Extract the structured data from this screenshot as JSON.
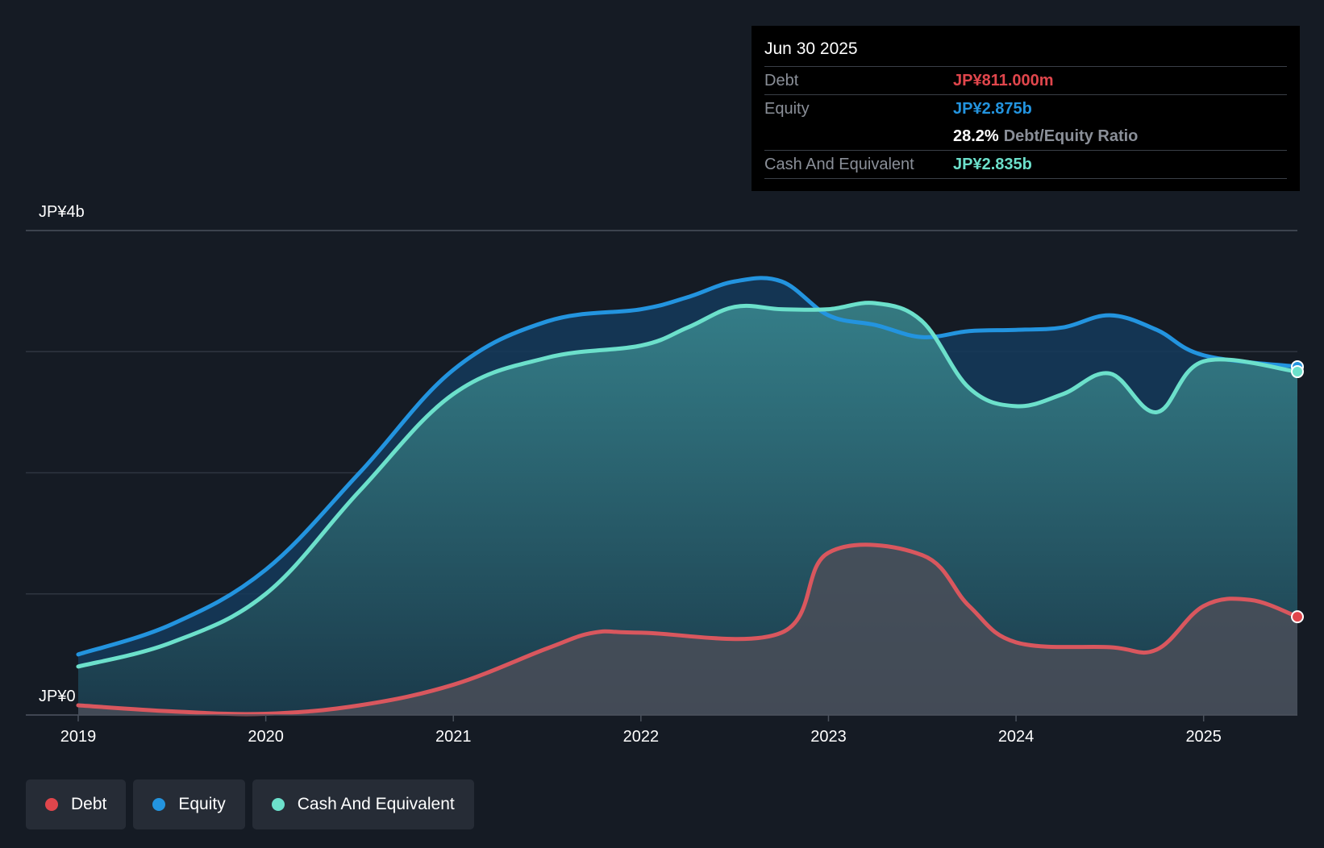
{
  "tooltip": {
    "date": "Jun 30 2025",
    "debt_label": "Debt",
    "debt_value": "JP¥811.000m",
    "equity_label": "Equity",
    "equity_value": "JP¥2.875b",
    "ratio_value": "28.2%",
    "ratio_label": "Debt/Equity Ratio",
    "cash_label": "Cash And Equivalent",
    "cash_value": "JP¥2.835b"
  },
  "legend": {
    "debt": "Debt",
    "equity": "Equity",
    "cash": "Cash And Equivalent"
  },
  "colors": {
    "background": "#151b24",
    "debt": "#e0464c",
    "equity": "#2394df",
    "cash": "#6ce0cb",
    "grid": "#2e3540"
  },
  "chart_data": {
    "type": "area",
    "title": "",
    "xlabel": "",
    "ylabel": "",
    "y_top_label": "JP¥4b",
    "y_bottom_label": "JP¥0",
    "ylim": [
      0,
      4
    ],
    "xlim": [
      2019,
      2025.5
    ],
    "x_ticks": [
      "2019",
      "2020",
      "2021",
      "2022",
      "2023",
      "2024",
      "2025"
    ],
    "series": [
      {
        "name": "Equity",
        "points": [
          [
            2019,
            0.5
          ],
          [
            2019.5,
            0.75
          ],
          [
            2020,
            1.2
          ],
          [
            2020.5,
            2.0
          ],
          [
            2021,
            2.85
          ],
          [
            2021.5,
            3.25
          ],
          [
            2022,
            3.35
          ],
          [
            2022.25,
            3.45
          ],
          [
            2022.5,
            3.58
          ],
          [
            2022.75,
            3.58
          ],
          [
            2023,
            3.3
          ],
          [
            2023.25,
            3.22
          ],
          [
            2023.5,
            3.12
          ],
          [
            2023.75,
            3.17
          ],
          [
            2024,
            3.18
          ],
          [
            2024.25,
            3.2
          ],
          [
            2024.5,
            3.3
          ],
          [
            2024.75,
            3.18
          ],
          [
            2025,
            2.97
          ],
          [
            2025.5,
            2.875
          ]
        ]
      },
      {
        "name": "Cash And Equivalent",
        "points": [
          [
            2019,
            0.4
          ],
          [
            2019.5,
            0.6
          ],
          [
            2020,
            1.0
          ],
          [
            2020.5,
            1.85
          ],
          [
            2021,
            2.65
          ],
          [
            2021.5,
            2.95
          ],
          [
            2022,
            3.05
          ],
          [
            2022.25,
            3.2
          ],
          [
            2022.5,
            3.37
          ],
          [
            2022.75,
            3.35
          ],
          [
            2023,
            3.35
          ],
          [
            2023.25,
            3.4
          ],
          [
            2023.5,
            3.25
          ],
          [
            2023.75,
            2.7
          ],
          [
            2024,
            2.55
          ],
          [
            2024.25,
            2.65
          ],
          [
            2024.5,
            2.82
          ],
          [
            2024.75,
            2.5
          ],
          [
            2025,
            2.92
          ],
          [
            2025.5,
            2.835
          ]
        ]
      },
      {
        "name": "Debt",
        "points": [
          [
            2019,
            0.08
          ],
          [
            2019.5,
            0.03
          ],
          [
            2020,
            0.01
          ],
          [
            2020.5,
            0.08
          ],
          [
            2021,
            0.25
          ],
          [
            2021.5,
            0.55
          ],
          [
            2021.75,
            0.68
          ],
          [
            2022,
            0.68
          ],
          [
            2022.75,
            0.68
          ],
          [
            2023,
            1.34
          ],
          [
            2023.5,
            1.32
          ],
          [
            2023.75,
            0.9
          ],
          [
            2024,
            0.6
          ],
          [
            2024.5,
            0.56
          ],
          [
            2024.75,
            0.54
          ],
          [
            2025,
            0.9
          ],
          [
            2025.25,
            0.95
          ],
          [
            2025.5,
            0.811
          ]
        ]
      }
    ]
  }
}
